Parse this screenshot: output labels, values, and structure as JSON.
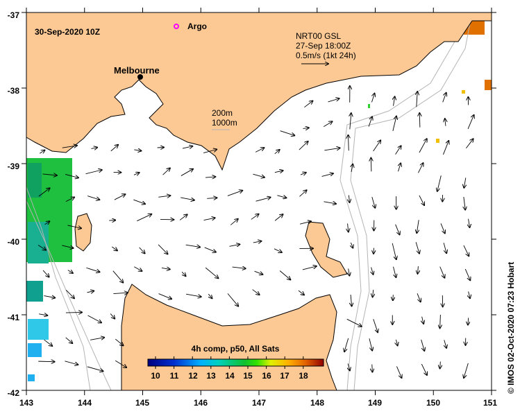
{
  "map": {
    "date_label": "30-Sep-2020 10Z",
    "argo_label": "Argo",
    "city_label": "Melbourne",
    "vector_legend": {
      "line1": "NRT00 GSL",
      "line2": "27-Sep 18:00Z",
      "line3": "0.5m/s (1kt 24h)"
    },
    "isobath_legend": {
      "line1": "200m",
      "line2": "1000m"
    },
    "credit": "© IMOS 02-Oct-2020 07:23 Hobart",
    "x_ticks": [
      "143",
      "144",
      "145",
      "146",
      "147",
      "148",
      "149",
      "150",
      "151"
    ],
    "y_ticks": [
      "-37",
      "-38",
      "-39",
      "-40",
      "-41",
      "-42"
    ],
    "colorbar": {
      "title": "4h comp, p50, All Sats",
      "labels": [
        "10",
        "11",
        "12",
        "13",
        "14",
        "15",
        "16",
        "17",
        "18"
      ]
    },
    "colors": {
      "land": "#fcc994",
      "argo": "#ff00ff",
      "isobath": "#b4b4b4",
      "sst_green": "#1fbf3f"
    }
  }
}
